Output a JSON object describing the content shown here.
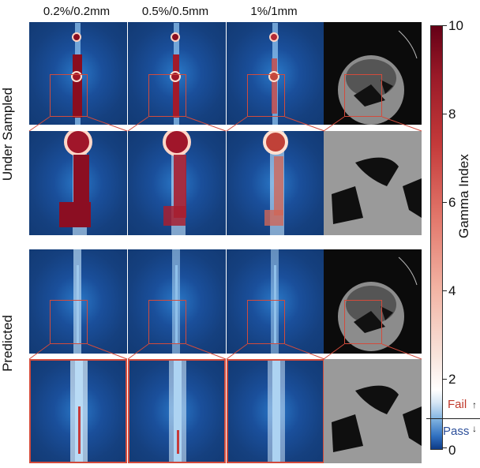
{
  "columns": [
    "0.2%/0.2mm",
    "0.5%/0.5mm",
    "1%/1mm"
  ],
  "rows": [
    "Under Sampled",
    "Predicted"
  ],
  "colorbar": {
    "title": "Gamma Index",
    "ticks": [
      "10",
      "8",
      "6",
      "4",
      "2",
      "0"
    ],
    "fail_label": "Fail",
    "pass_label": "Pass"
  },
  "colors": {
    "background": "#ffffff",
    "inset_red": "#d24b3c",
    "fail": "#c0392b",
    "pass": "#2c4f9a"
  }
}
